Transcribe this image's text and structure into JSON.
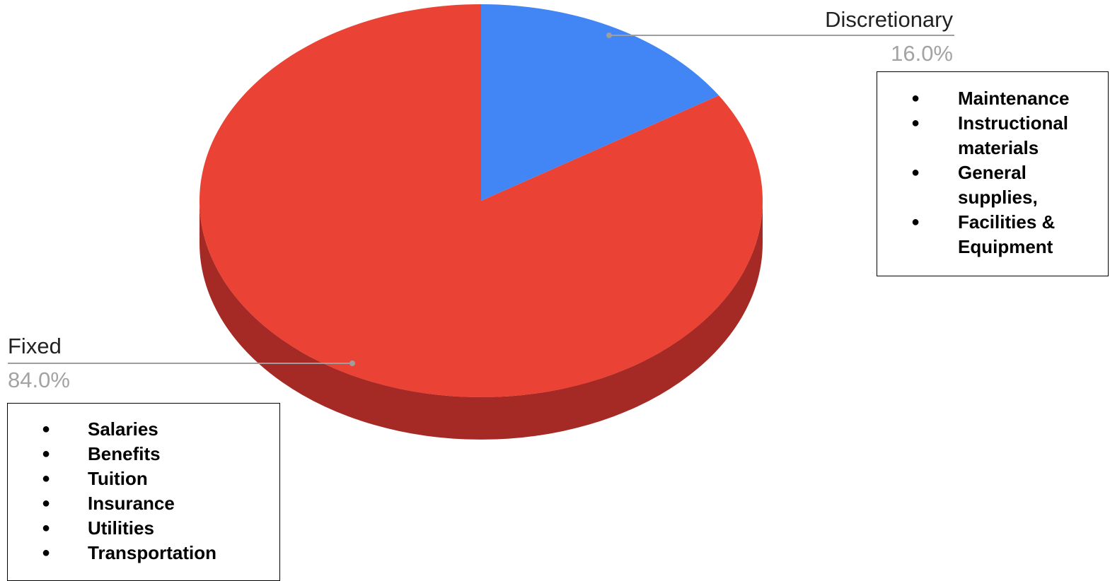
{
  "chart_data": {
    "type": "pie",
    "style": "3d",
    "slices": [
      {
        "label": "Discretionary",
        "value": 16.0,
        "percent_label": "16.0%",
        "color": "#4285f4",
        "side_color": "#3367d6"
      },
      {
        "label": "Fixed",
        "value": 84.0,
        "percent_label": "84.0%",
        "color": "#ea4335",
        "side_color": "#a52a25"
      }
    ],
    "legend": "none"
  },
  "annotations": {
    "discretionary_items": [
      "Maintenance",
      "Instructional materials",
      "General supplies,",
      "Facilities & Equipment"
    ],
    "fixed_items": [
      "Salaries",
      "Benefits",
      "Tuition",
      "Insurance",
      "Utilities",
      "Transportation"
    ],
    "bullet": "●"
  },
  "colors": {
    "leader_line": "#9e9e9e",
    "label_text": "#222222",
    "percent_text": "#a3a3a3"
  }
}
